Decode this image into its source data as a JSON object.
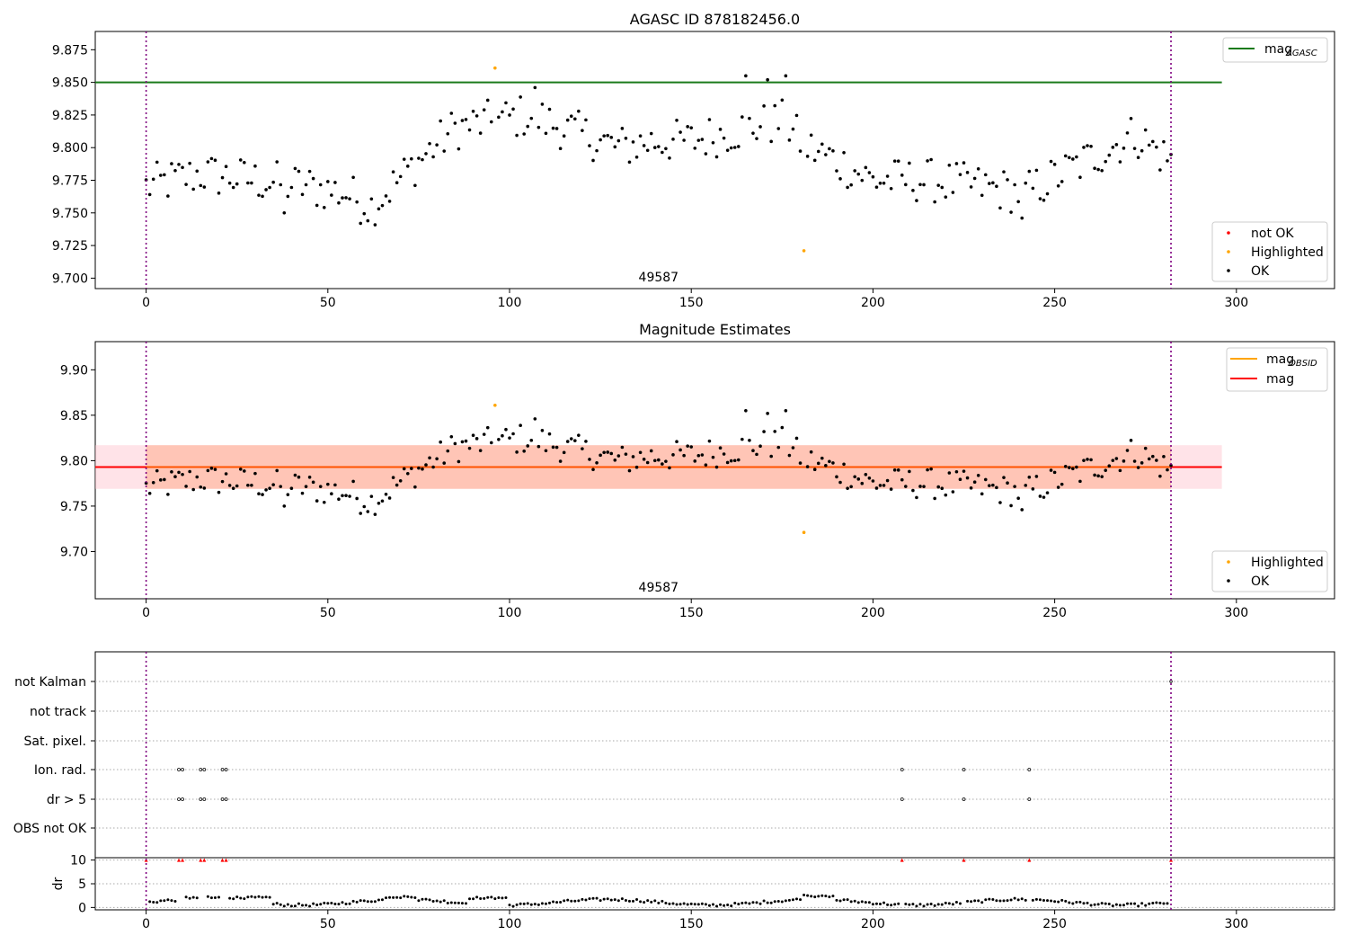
{
  "chart_data": [
    {
      "type": "scatter",
      "title": "AGASC ID 878182456.0",
      "annotation": "49587",
      "xlim": [
        -14,
        327
      ],
      "ylim": [
        9.692,
        9.889
      ],
      "xticks": [
        "0",
        "50",
        "100",
        "150",
        "200",
        "250",
        "300"
      ],
      "yticks": [
        "9.700",
        "9.725",
        "9.750",
        "9.775",
        "9.800",
        "9.825",
        "9.850",
        "9.875"
      ],
      "vlines": [
        0,
        282
      ],
      "hlines": [
        {
          "name": "mag_AGASC",
          "y": 9.85,
          "color": "#1a7a1a",
          "x_range": [
            -14,
            296
          ]
        }
      ],
      "legend_lines": [
        {
          "label": "mag",
          "sub": "AGASC",
          "color": "#1a7a1a"
        }
      ],
      "legend_markers": [
        {
          "label": "not OK",
          "color": "#ff0000"
        },
        {
          "label": "Highlighted",
          "color": "#ffa500"
        },
        {
          "label": "OK",
          "color": "#000000"
        }
      ],
      "highlighted_points": [
        [
          96,
          9.861
        ],
        [
          181,
          9.721
        ]
      ],
      "ok_points_generated": "series of ~280 OK magnitude estimates between 9.74 and 9.856"
    },
    {
      "type": "scatter",
      "title": "Magnitude Estimates",
      "annotation": "49587",
      "xlim": [
        -14,
        327
      ],
      "ylim": [
        9.648,
        9.931
      ],
      "xticks": [
        "0",
        "50",
        "100",
        "150",
        "200",
        "250",
        "300"
      ],
      "yticks": [
        "9.70",
        "9.75",
        "9.80",
        "9.85",
        "9.90"
      ],
      "vlines": [
        0,
        282
      ],
      "hlines": [
        {
          "name": "mag",
          "y": 9.793,
          "color": "#ff0000",
          "x_range": [
            -14,
            296
          ]
        }
      ],
      "bands": [
        {
          "name": "mag band",
          "y": [
            9.769,
            9.817
          ],
          "color": "#ffc0cb"
        },
        {
          "name": "mag_OBSID band",
          "y": [
            9.769,
            9.817
          ],
          "color": "#ffa07a"
        }
      ],
      "legend_lines": [
        {
          "label": "mag",
          "sub": "OBSID",
          "color": "#ffa500"
        },
        {
          "label": "mag",
          "sub": "",
          "color": "#ff0000"
        }
      ],
      "legend_markers": [
        {
          "label": "Highlighted",
          "color": "#ffa500"
        },
        {
          "label": "OK",
          "color": "#000000"
        }
      ],
      "highlighted_points": [
        [
          96,
          9.861
        ],
        [
          181,
          9.721
        ]
      ]
    },
    {
      "type": "scatter",
      "title": "",
      "categories": [
        "not Kalman",
        "not track",
        "Sat. pixel.",
        "Ion. rad.",
        "dr > 5",
        "OBS not OK"
      ],
      "flag_points": {
        "Ion. rad.": [
          9,
          10,
          15,
          16,
          21,
          22,
          208,
          225,
          243
        ],
        "dr > 5": [
          9,
          10,
          15,
          16,
          21,
          22,
          208,
          225,
          243
        ]
      },
      "dr": {
        "ylabel": "dr",
        "yticks": [
          "0",
          "5",
          "10"
        ],
        "ylim": [
          -0.5,
          10.5
        ],
        "high_points": [
          0,
          9,
          10,
          15,
          16,
          21,
          22,
          208,
          225,
          243,
          282
        ],
        "high_value": 10
      },
      "xlim": [
        -14,
        327
      ],
      "xticks": [
        "0",
        "50",
        "100",
        "150",
        "200",
        "250",
        "300"
      ],
      "vlines": [
        0,
        282
      ]
    }
  ]
}
